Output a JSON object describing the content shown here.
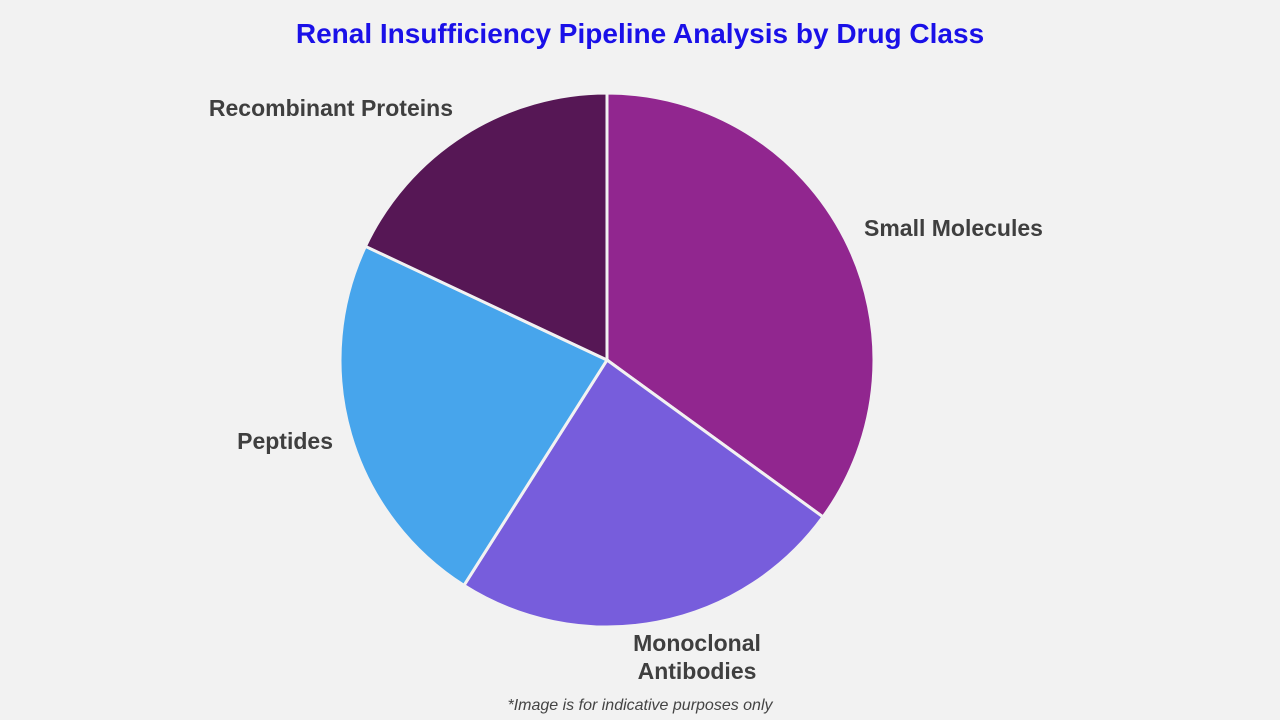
{
  "chart_data": {
    "type": "pie",
    "title": "Renal Insufficiency Pipeline Analysis by Drug Class",
    "start_angle": "12 o'clock, clockwise",
    "categories": [
      "Small Molecules",
      "Monoclonal Antibodies",
      "Peptides",
      "Recombinant Proteins"
    ],
    "label_lines": [
      [
        "Small Molecules"
      ],
      [
        "Monoclonal",
        "Antibodies"
      ],
      [
        "Peptides"
      ],
      [
        "Recombinant Proteins"
      ]
    ],
    "values": [
      35,
      24,
      23,
      18
    ],
    "colors": [
      "#91268f",
      "#775ddc",
      "#47a5ec",
      "#561755"
    ],
    "legend": "none (direct labels)",
    "footnote": "*Image is for indicative purposes only"
  }
}
